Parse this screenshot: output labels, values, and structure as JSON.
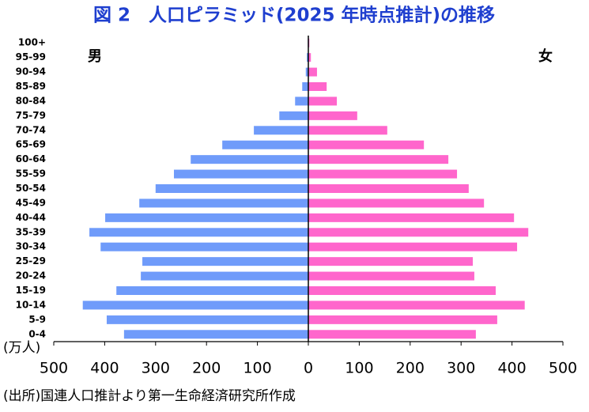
{
  "chart_data": {
    "type": "pyramid",
    "title": "図 2　人口ピラミッド(2025 年時点推計)の推移",
    "unit": "(万人)",
    "source": "(出所)国連人口推計より第一生命経済研究所作成",
    "categories": [
      "100+",
      "95-99",
      "90-94",
      "85-89",
      "80-84",
      "75-79",
      "70-74",
      "65-69",
      "60-64",
      "55-59",
      "50-54",
      "45-49",
      "40-44",
      "35-39",
      "30-34",
      "25-29",
      "20-24",
      "15-19",
      "10-14",
      "5-9",
      "0-4"
    ],
    "series": [
      {
        "name": "男",
        "color": "#6f9bfa",
        "side": "left",
        "values": [
          1,
          3,
          5,
          12,
          26,
          57,
          107,
          169,
          231,
          264,
          300,
          332,
          399,
          430,
          408,
          326,
          329,
          377,
          443,
          396,
          362
        ]
      },
      {
        "name": "女",
        "color": "#ff66cc",
        "side": "right",
        "values": [
          2,
          5,
          17,
          36,
          56,
          96,
          155,
          227,
          275,
          292,
          315,
          345,
          404,
          432,
          410,
          323,
          326,
          368,
          425,
          371,
          329
        ]
      }
    ],
    "xlim": [
      0,
      500
    ],
    "left_xticks": [
      500,
      400,
      300,
      200,
      100,
      0
    ],
    "right_xticks": [
      100,
      200,
      300,
      400,
      500
    ]
  }
}
